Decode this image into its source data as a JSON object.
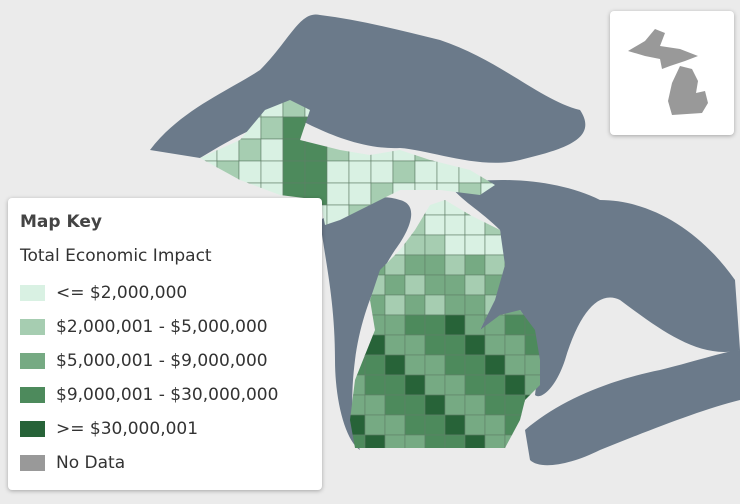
{
  "legend": {
    "title": "Map Key",
    "subtitle": "Total Economic Impact",
    "items": [
      {
        "label": "<= $2,000,000",
        "color": "#d9f1e3"
      },
      {
        "label": "$2,000,001 - $5,000,000",
        "color": "#a6cdb1"
      },
      {
        "label": "$5,000,001 - $9,000,000",
        "color": "#76aa83"
      },
      {
        "label": "$9,000,001 - $30,000,000",
        "color": "#4d8a5c"
      },
      {
        "label": ">= $30,000,001",
        "color": "#276338"
      },
      {
        "label": "No Data",
        "color": "#999999"
      }
    ]
  }
}
